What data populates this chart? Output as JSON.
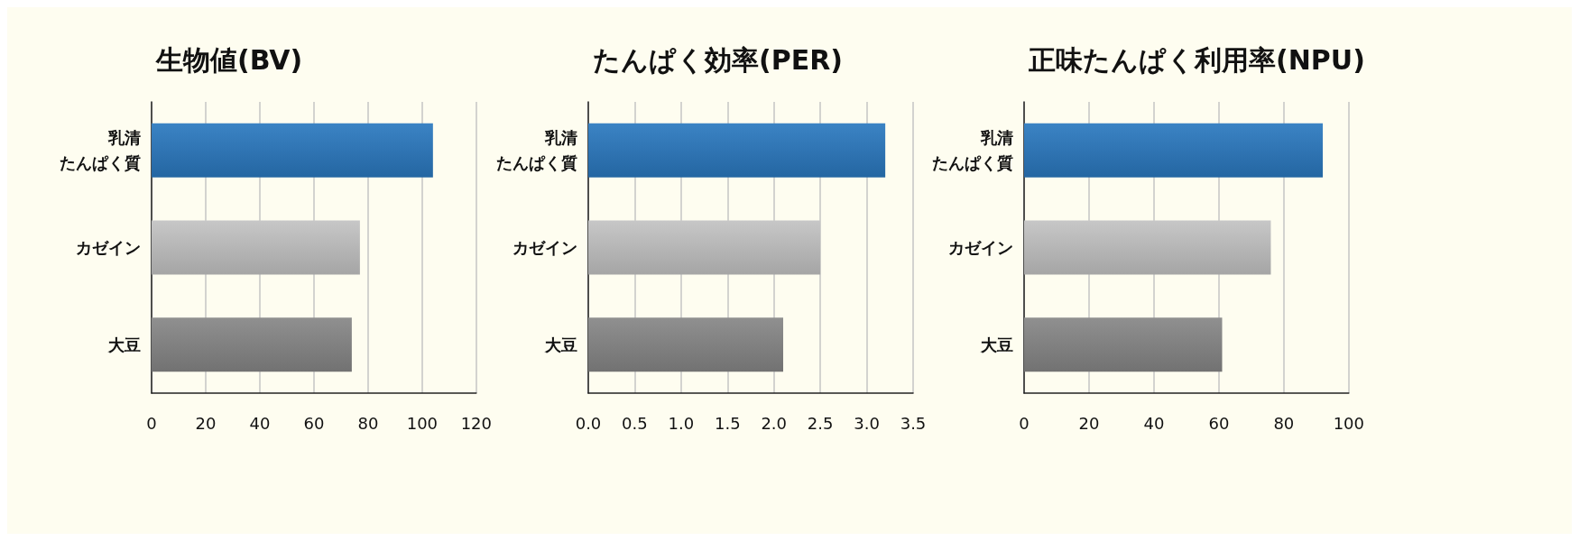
{
  "chart_data": [
    {
      "type": "bar",
      "orientation": "horizontal",
      "title": "生物値(BV)",
      "categories": [
        "乳清たんぱく質",
        "カゼイン",
        "大豆"
      ],
      "values": [
        104,
        77,
        74
      ],
      "colors": [
        "#2a78bf",
        "#c2c2c2",
        "#868686"
      ],
      "xlim": [
        0,
        120
      ],
      "xticks": [
        0,
        20,
        40,
        60,
        80,
        100,
        120
      ],
      "grid": "x"
    },
    {
      "type": "bar",
      "orientation": "horizontal",
      "title": "たんぱく効率(PER)",
      "categories": [
        "乳清たんぱく質",
        "カゼイン",
        "大豆"
      ],
      "values": [
        3.2,
        2.5,
        2.1
      ],
      "colors": [
        "#2a78bf",
        "#c2c2c2",
        "#868686"
      ],
      "xlim": [
        0,
        3.5
      ],
      "xticks": [
        {
          "value": 0,
          "label": "0.0"
        },
        0.5,
        {
          "value": 1,
          "label": "1.0"
        },
        1.5,
        {
          "value": 2,
          "label": "2.0"
        },
        2.5,
        {
          "value": 3,
          "label": "3.0"
        },
        3.5
      ],
      "grid": "x"
    },
    {
      "type": "bar",
      "orientation": "horizontal",
      "title": "正味たんぱく利用率(NPU)",
      "categories": [
        "乳清たんぱく質",
        "カゼイン",
        "大豆"
      ],
      "values": [
        92,
        76,
        61
      ],
      "colors": [
        "#2a78bf",
        "#c2c2c2",
        "#868686"
      ],
      "xlim": [
        0,
        100
      ],
      "xticks": [
        0,
        20,
        40,
        60,
        80,
        100
      ],
      "grid": "x"
    }
  ]
}
